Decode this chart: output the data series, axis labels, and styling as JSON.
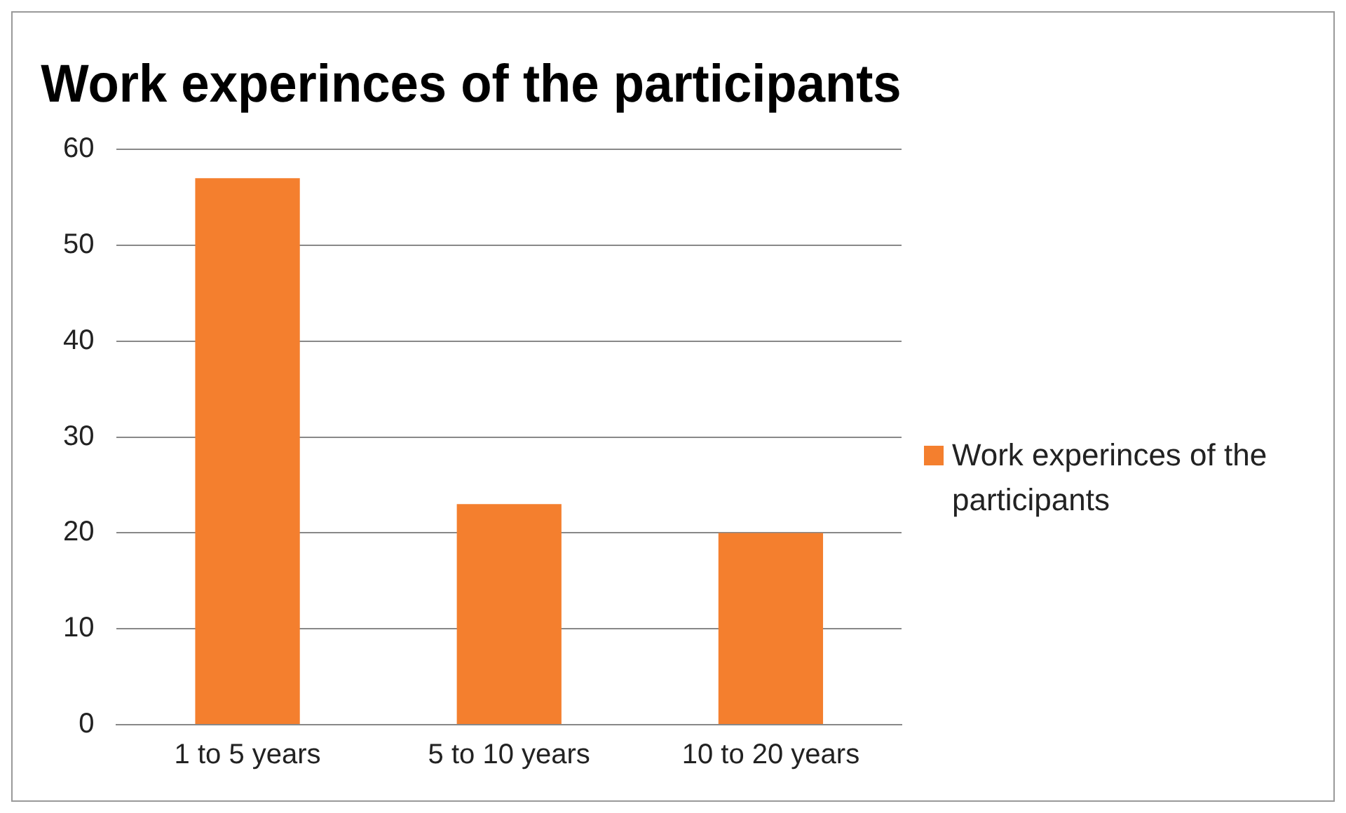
{
  "chart_data": {
    "type": "bar",
    "title": "Work experinces of the participants",
    "categories": [
      "1 to 5 years",
      "5 to 10 years",
      "10 to 20 years"
    ],
    "series": [
      {
        "name": "Work experinces of the participants",
        "color": "#f47f2e",
        "values": [
          57,
          23,
          20
        ]
      }
    ],
    "ylim": [
      0,
      60
    ],
    "yticks": [
      0,
      10,
      20,
      30,
      40,
      50,
      60
    ],
    "grid": "y",
    "legend": "right"
  }
}
